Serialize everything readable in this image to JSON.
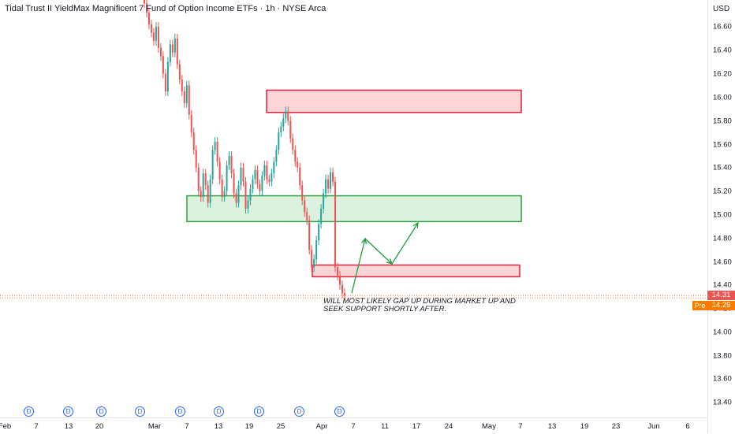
{
  "header": {
    "title": "Tidal Trust II YieldMax Magnificent 7 Fund of Option Income ETFs · 1h · NYSE Arca",
    "currency": "USD"
  },
  "price_axis": {
    "ticks": [
      "16.60",
      "16.40",
      "16.20",
      "16.00",
      "15.80",
      "15.60",
      "15.40",
      "15.20",
      "15.00",
      "14.80",
      "14.60",
      "14.40",
      "14.20",
      "14.00",
      "13.80",
      "13.60",
      "13.40"
    ],
    "current_price": "14.31",
    "pre_price": "14.29",
    "pre_label": "Pre"
  },
  "time_axis": {
    "labels": [
      "Feb",
      "7",
      "13",
      "20",
      "Mar",
      "7",
      "13",
      "19",
      "25",
      "Apr",
      "7",
      "11",
      "17",
      "24",
      "May",
      "7",
      "13",
      "19",
      "23",
      "Jun",
      "6"
    ]
  },
  "dividend_markers": [
    "D",
    "D",
    "D",
    "D",
    "D",
    "D",
    "D",
    "D",
    "D"
  ],
  "annotation": "WILL MOST LIKELY GAP UP DURING MARKET UP AND SEEK SUPPORT SHORTLY AFTER.",
  "zones": [
    {
      "name": "resistance-zone",
      "type": "red",
      "top": 16.06,
      "bottom": 15.87
    },
    {
      "name": "support-zone-middle",
      "type": "green",
      "top": 15.16,
      "bottom": 14.94
    },
    {
      "name": "support-zone-lower",
      "type": "red",
      "top": 14.57,
      "bottom": 14.47
    }
  ],
  "colors": {
    "up": "#26a69a",
    "down": "#ef5350",
    "red_zone_fill": "#fbd5d8",
    "red_zone_border": "#e0203a",
    "green_zone_fill": "#dcf1de",
    "green_zone_border": "#2ea043",
    "arrow": "#1e9e3a",
    "current_price_bg": "#ef5350",
    "pre_price_bg": "#f57c00",
    "dividend": "#2962ff"
  },
  "price_path": [
    16.95,
    16.8,
    16.72,
    16.62,
    16.55,
    16.48,
    16.6,
    16.42,
    16.35,
    16.2,
    16.05,
    16.3,
    16.45,
    16.38,
    16.5,
    16.28,
    16.15,
    16.05,
    15.95,
    16.1,
    15.85,
    15.7,
    15.55,
    15.4,
    15.2,
    15.15,
    15.35,
    15.25,
    15.1,
    15.3,
    15.55,
    15.62,
    15.45,
    15.3,
    15.15,
    15.2,
    15.42,
    15.5,
    15.35,
    15.18,
    15.1,
    15.25,
    15.4,
    15.28,
    15.05,
    15.12,
    15.22,
    15.3,
    15.38,
    15.26,
    15.2,
    15.33,
    15.42,
    15.3,
    15.28,
    15.35,
    15.45,
    15.55,
    15.7,
    15.75,
    15.82,
    15.88,
    15.8,
    15.65,
    15.55,
    15.45,
    15.4,
    15.25,
    15.12,
    15.02,
    14.95,
    14.7,
    14.55,
    14.62,
    14.78,
    14.92,
    15.05,
    15.18,
    15.3,
    15.22,
    15.36,
    15.28,
    14.55,
    14.48,
    14.4,
    14.33,
    14.31
  ]
}
